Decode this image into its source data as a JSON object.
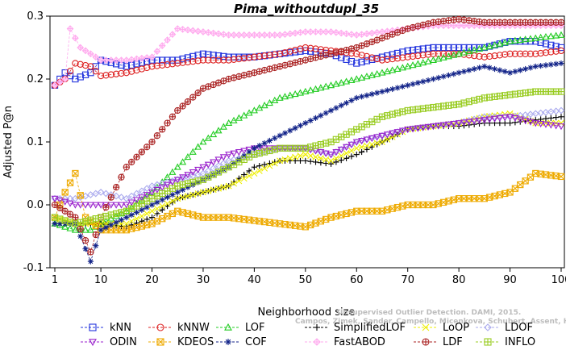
{
  "chart_data": {
    "type": "line",
    "title": "Pima_withoutdupl_35",
    "xlabel": "Neighborhood size",
    "ylabel": "Adjusted P@n",
    "xlim": [
      1,
      100
    ],
    "ylim": [
      -0.1,
      0.3
    ],
    "x_ticks": [
      1,
      10,
      20,
      30,
      40,
      50,
      60,
      70,
      80,
      90,
      100
    ],
    "y_ticks": [
      -0.1,
      0.0,
      0.1,
      0.2,
      0.3
    ],
    "y_tick_labels": [
      "-0.1",
      "0.0",
      "0.1",
      "0.2",
      "0.3"
    ],
    "grid": false,
    "legend_position": "bottom",
    "watermark_lines": [
      "Unsupervised Outlier Detection. DAMI, 2015.",
      "Campos, Zimek, Sander, Campello, Micenkova, Schubert, Assent, Houle"
    ],
    "series": [
      {
        "name": "kNN",
        "color": "#2233dd",
        "marker": "square",
        "points": [
          [
            1,
            0.19
          ],
          [
            3,
            0.21
          ],
          [
            5,
            0.2
          ],
          [
            8,
            0.21
          ],
          [
            10,
            0.23
          ],
          [
            15,
            0.22
          ],
          [
            20,
            0.23
          ],
          [
            25,
            0.23
          ],
          [
            30,
            0.24
          ],
          [
            35,
            0.235
          ],
          [
            40,
            0.235
          ],
          [
            45,
            0.24
          ],
          [
            50,
            0.245
          ],
          [
            55,
            0.24
          ],
          [
            60,
            0.225
          ],
          [
            65,
            0.235
          ],
          [
            70,
            0.245
          ],
          [
            75,
            0.25
          ],
          [
            80,
            0.25
          ],
          [
            85,
            0.25
          ],
          [
            90,
            0.26
          ],
          [
            95,
            0.26
          ],
          [
            100,
            0.25
          ]
        ]
      },
      {
        "name": "kNNW",
        "color": "#dd2222",
        "marker": "circle",
        "points": [
          [
            1,
            0.19
          ],
          [
            3,
            0.2
          ],
          [
            5,
            0.225
          ],
          [
            8,
            0.22
          ],
          [
            10,
            0.205
          ],
          [
            15,
            0.21
          ],
          [
            20,
            0.22
          ],
          [
            25,
            0.225
          ],
          [
            30,
            0.23
          ],
          [
            35,
            0.23
          ],
          [
            40,
            0.235
          ],
          [
            45,
            0.24
          ],
          [
            50,
            0.25
          ],
          [
            55,
            0.245
          ],
          [
            60,
            0.24
          ],
          [
            65,
            0.23
          ],
          [
            70,
            0.235
          ],
          [
            75,
            0.24
          ],
          [
            80,
            0.24
          ],
          [
            85,
            0.235
          ],
          [
            90,
            0.24
          ],
          [
            95,
            0.24
          ],
          [
            100,
            0.245
          ]
        ]
      },
      {
        "name": "LOF",
        "color": "#22cc22",
        "marker": "triangle-up",
        "points": [
          [
            1,
            -0.03
          ],
          [
            5,
            -0.04
          ],
          [
            8,
            -0.04
          ],
          [
            10,
            -0.03
          ],
          [
            15,
            -0.01
          ],
          [
            20,
            0.02
          ],
          [
            25,
            0.06
          ],
          [
            30,
            0.1
          ],
          [
            35,
            0.13
          ],
          [
            40,
            0.15
          ],
          [
            45,
            0.17
          ],
          [
            50,
            0.18
          ],
          [
            55,
            0.19
          ],
          [
            60,
            0.2
          ],
          [
            65,
            0.21
          ],
          [
            70,
            0.22
          ],
          [
            75,
            0.23
          ],
          [
            80,
            0.24
          ],
          [
            85,
            0.25
          ],
          [
            90,
            0.26
          ],
          [
            95,
            0.265
          ],
          [
            100,
            0.27
          ]
        ]
      },
      {
        "name": "SimplifiedLOF",
        "color": "#000000",
        "marker": "plus",
        "points": [
          [
            1,
            -0.03
          ],
          [
            5,
            -0.03
          ],
          [
            10,
            -0.03
          ],
          [
            15,
            -0.035
          ],
          [
            20,
            -0.02
          ],
          [
            25,
            0.01
          ],
          [
            30,
            0.02
          ],
          [
            35,
            0.03
          ],
          [
            40,
            0.06
          ],
          [
            45,
            0.07
          ],
          [
            50,
            0.07
          ],
          [
            55,
            0.065
          ],
          [
            60,
            0.08
          ],
          [
            65,
            0.1
          ],
          [
            70,
            0.12
          ],
          [
            75,
            0.125
          ],
          [
            80,
            0.125
          ],
          [
            85,
            0.13
          ],
          [
            90,
            0.13
          ],
          [
            95,
            0.135
          ],
          [
            100,
            0.14
          ]
        ]
      },
      {
        "name": "LoOP",
        "color": "#eeee00",
        "marker": "x",
        "points": [
          [
            1,
            -0.02
          ],
          [
            5,
            -0.03
          ],
          [
            10,
            -0.03
          ],
          [
            15,
            -0.03
          ],
          [
            20,
            -0.01
          ],
          [
            25,
            0.01
          ],
          [
            30,
            0.02
          ],
          [
            35,
            0.03
          ],
          [
            40,
            0.05
          ],
          [
            45,
            0.07
          ],
          [
            50,
            0.08
          ],
          [
            55,
            0.07
          ],
          [
            60,
            0.09
          ],
          [
            65,
            0.1
          ],
          [
            70,
            0.12
          ],
          [
            75,
            0.125
          ],
          [
            80,
            0.13
          ],
          [
            85,
            0.14
          ],
          [
            90,
            0.145
          ],
          [
            95,
            0.13
          ],
          [
            100,
            0.13
          ]
        ]
      },
      {
        "name": "LDOF",
        "color": "#aaaaee",
        "marker": "diamond",
        "points": [
          [
            1,
            0.01
          ],
          [
            5,
            0.01
          ],
          [
            10,
            0.02
          ],
          [
            15,
            0.01
          ],
          [
            20,
            0.03
          ],
          [
            25,
            0.04
          ],
          [
            30,
            0.05
          ],
          [
            35,
            0.07
          ],
          [
            40,
            0.08
          ],
          [
            45,
            0.09
          ],
          [
            50,
            0.09
          ],
          [
            55,
            0.08
          ],
          [
            60,
            0.1
          ],
          [
            65,
            0.11
          ],
          [
            70,
            0.12
          ],
          [
            75,
            0.125
          ],
          [
            80,
            0.13
          ],
          [
            85,
            0.14
          ],
          [
            90,
            0.14
          ],
          [
            95,
            0.145
          ],
          [
            100,
            0.15
          ]
        ]
      },
      {
        "name": "ODIN",
        "color": "#9922cc",
        "marker": "triangle-down",
        "points": [
          [
            1,
            0.01
          ],
          [
            5,
            0.0
          ],
          [
            10,
            0.0
          ],
          [
            15,
            0.0
          ],
          [
            20,
            0.02
          ],
          [
            25,
            0.04
          ],
          [
            30,
            0.06
          ],
          [
            35,
            0.08
          ],
          [
            40,
            0.09
          ],
          [
            45,
            0.09
          ],
          [
            50,
            0.09
          ],
          [
            55,
            0.08
          ],
          [
            60,
            0.1
          ],
          [
            65,
            0.11
          ],
          [
            70,
            0.12
          ],
          [
            75,
            0.125
          ],
          [
            80,
            0.13
          ],
          [
            85,
            0.135
          ],
          [
            90,
            0.14
          ],
          [
            95,
            0.13
          ],
          [
            100,
            0.125
          ]
        ]
      },
      {
        "name": "KDEOS",
        "color": "#eeaa00",
        "marker": "square-x",
        "points": [
          [
            1,
            -0.02
          ],
          [
            3,
            0.02
          ],
          [
            5,
            0.05
          ],
          [
            7,
            -0.02
          ],
          [
            10,
            -0.04
          ],
          [
            15,
            -0.04
          ],
          [
            20,
            -0.03
          ],
          [
            25,
            -0.01
          ],
          [
            30,
            -0.02
          ],
          [
            35,
            -0.02
          ],
          [
            40,
            -0.025
          ],
          [
            45,
            -0.03
          ],
          [
            50,
            -0.035
          ],
          [
            55,
            -0.02
          ],
          [
            60,
            -0.01
          ],
          [
            65,
            -0.01
          ],
          [
            70,
            0.0
          ],
          [
            75,
            0.0
          ],
          [
            80,
            0.01
          ],
          [
            85,
            0.01
          ],
          [
            90,
            0.02
          ],
          [
            95,
            0.05
          ],
          [
            100,
            0.045
          ]
        ]
      },
      {
        "name": "COF",
        "color": "#112288",
        "marker": "asterisk",
        "points": [
          [
            1,
            -0.03
          ],
          [
            5,
            -0.03
          ],
          [
            8,
            -0.09
          ],
          [
            10,
            -0.04
          ],
          [
            15,
            -0.02
          ],
          [
            20,
            0.0
          ],
          [
            25,
            0.02
          ],
          [
            30,
            0.04
          ],
          [
            35,
            0.06
          ],
          [
            40,
            0.09
          ],
          [
            45,
            0.11
          ],
          [
            50,
            0.13
          ],
          [
            55,
            0.15
          ],
          [
            60,
            0.17
          ],
          [
            65,
            0.18
          ],
          [
            70,
            0.19
          ],
          [
            75,
            0.2
          ],
          [
            80,
            0.21
          ],
          [
            85,
            0.22
          ],
          [
            90,
            0.21
          ],
          [
            95,
            0.22
          ],
          [
            100,
            0.225
          ]
        ]
      },
      {
        "name": "FastABOD",
        "color": "#ffaaee",
        "marker": "diamond-plus",
        "points": [
          [
            1,
            0.19
          ],
          [
            3,
            0.2
          ],
          [
            4,
            0.28
          ],
          [
            6,
            0.25
          ],
          [
            10,
            0.23
          ],
          [
            15,
            0.23
          ],
          [
            20,
            0.235
          ],
          [
            25,
            0.28
          ],
          [
            30,
            0.275
          ],
          [
            35,
            0.27
          ],
          [
            40,
            0.27
          ],
          [
            45,
            0.27
          ],
          [
            50,
            0.275
          ],
          [
            55,
            0.275
          ],
          [
            60,
            0.27
          ],
          [
            65,
            0.275
          ],
          [
            70,
            0.28
          ],
          [
            75,
            0.285
          ],
          [
            80,
            0.285
          ],
          [
            85,
            0.285
          ],
          [
            90,
            0.285
          ],
          [
            95,
            0.285
          ],
          [
            100,
            0.285
          ]
        ]
      },
      {
        "name": "LDF",
        "color": "#aa2222",
        "marker": "circle-plus",
        "points": [
          [
            1,
            0.0
          ],
          [
            5,
            -0.02
          ],
          [
            8,
            -0.075
          ],
          [
            10,
            -0.02
          ],
          [
            15,
            0.06
          ],
          [
            20,
            0.1
          ],
          [
            25,
            0.15
          ],
          [
            30,
            0.185
          ],
          [
            35,
            0.2
          ],
          [
            40,
            0.21
          ],
          [
            45,
            0.22
          ],
          [
            50,
            0.23
          ],
          [
            55,
            0.24
          ],
          [
            60,
            0.25
          ],
          [
            65,
            0.265
          ],
          [
            70,
            0.28
          ],
          [
            75,
            0.29
          ],
          [
            80,
            0.295
          ],
          [
            85,
            0.29
          ],
          [
            90,
            0.29
          ],
          [
            95,
            0.29
          ],
          [
            100,
            0.29
          ]
        ]
      },
      {
        "name": "INFLO",
        "color": "#99cc22",
        "marker": "square-star",
        "points": [
          [
            1,
            -0.02
          ],
          [
            5,
            -0.03
          ],
          [
            10,
            -0.02
          ],
          [
            15,
            -0.01
          ],
          [
            20,
            0.01
          ],
          [
            25,
            0.03
          ],
          [
            30,
            0.04
          ],
          [
            35,
            0.06
          ],
          [
            40,
            0.08
          ],
          [
            45,
            0.09
          ],
          [
            50,
            0.09
          ],
          [
            55,
            0.1
          ],
          [
            60,
            0.12
          ],
          [
            65,
            0.14
          ],
          [
            70,
            0.15
          ],
          [
            75,
            0.155
          ],
          [
            80,
            0.16
          ],
          [
            85,
            0.17
          ],
          [
            90,
            0.175
          ],
          [
            95,
            0.18
          ],
          [
            100,
            0.18
          ]
        ]
      }
    ],
    "legend_order": [
      "kNN",
      "kNNW",
      "LOF",
      "SimplifiedLOF",
      "LoOP",
      "LDOF",
      "ODIN",
      "KDEOS",
      "COF",
      "FastABOD",
      "LDF",
      "INFLO"
    ]
  }
}
